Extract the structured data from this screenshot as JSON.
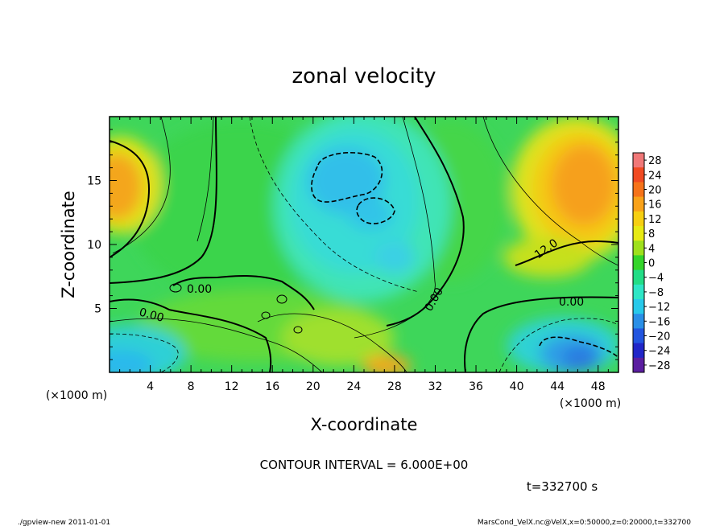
{
  "chart_data": {
    "type": "heatmap",
    "title": "zonal velocity",
    "xlabel": "X-coordinate",
    "ylabel": "Z-coordinate",
    "x_unit_label": "(×1000 m)",
    "z_unit_label": "(×1000 m)",
    "xlim": [
      0,
      50
    ],
    "ylim": [
      0,
      20
    ],
    "x_ticks": [
      "4",
      "8",
      "12",
      "16",
      "20",
      "24",
      "28",
      "32",
      "36",
      "40",
      "44",
      "48"
    ],
    "y_ticks": [
      "5",
      "10",
      "15"
    ],
    "colorbar_labels": [
      "28",
      "24",
      "20",
      "16",
      "12",
      "8",
      "4",
      "0",
      "−4",
      "−8",
      "−12",
      "−16",
      "−20",
      "−24",
      "−28"
    ],
    "colorbar_colors": [
      "#f07878",
      "#f04a22",
      "#f6731a",
      "#f9a21a",
      "#f6cf12",
      "#e7ea14",
      "#9ee01c",
      "#34d52a",
      "#22dd86",
      "#2ee6c6",
      "#28c9ea",
      "#2a8fe7",
      "#2255df",
      "#2126c8",
      "#5b1ea0"
    ],
    "contour_labels": [
      "0.00",
      "0.00",
      "0.00",
      "0.00",
      "12.0"
    ],
    "contour_interval": "CONTOUR INTERVAL = 6.000E+00",
    "time_label": "t=332700 s",
    "colorbar_range": [
      -30,
      30
    ],
    "grid": false
  },
  "footer": {
    "left": "./gpview-new  2011-01-01",
    "right": "MarsCond_VelX.nc@VelX,x=0:50000,z=0:20000,t=332700"
  }
}
